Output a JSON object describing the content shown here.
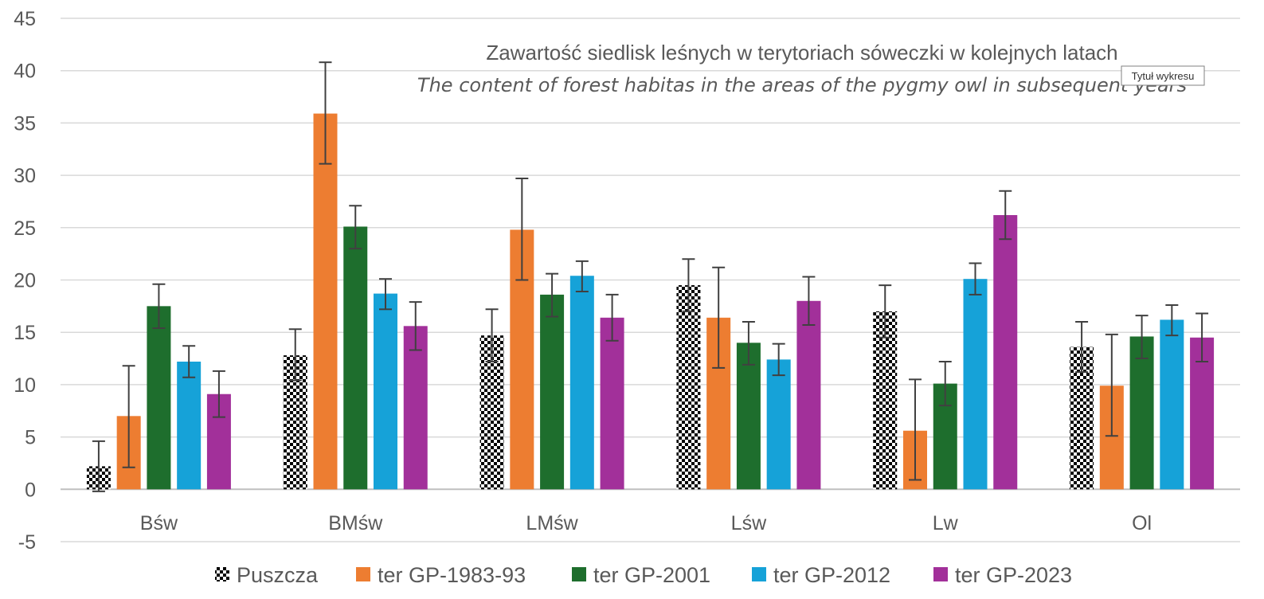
{
  "chart_data": {
    "type": "bar",
    "title": "Zawartość siedlisk leśnych w terytoriach sóweczki w kolejnych latach",
    "subtitle": "The content of forest habitas in the areas of the pygmy owl in subsequent years",
    "categories": [
      "Bśw",
      "BMśw",
      "LMśw",
      "Lśw",
      "Lw",
      "Ol"
    ],
    "ylim": [
      -5,
      45
    ],
    "yticks": [
      -5,
      0,
      5,
      10,
      15,
      20,
      25,
      30,
      35,
      40,
      45
    ],
    "grid": true,
    "legend_position": "bottom",
    "series": [
      {
        "name": "Puszcza",
        "pattern": "checker",
        "color": "#000000",
        "values": [
          2.2,
          12.8,
          14.7,
          19.5,
          17.0,
          13.6
        ],
        "err_low": [
          -0.2,
          10.4,
          12.2,
          17.0,
          14.5,
          11.2
        ],
        "err_high": [
          4.6,
          15.3,
          17.2,
          22.0,
          19.5,
          16.0
        ]
      },
      {
        "name": "ter GP-1983-93",
        "color": "#ED7D31",
        "values": [
          7.0,
          35.9,
          24.8,
          16.4,
          5.6,
          9.9
        ],
        "err_low": [
          2.1,
          31.1,
          20.0,
          11.6,
          0.9,
          5.1
        ],
        "err_high": [
          11.8,
          40.8,
          29.7,
          21.2,
          10.5,
          14.8
        ]
      },
      {
        "name": "ter GP-2001",
        "color": "#1E6E2D",
        "values": [
          17.5,
          25.1,
          18.6,
          14.0,
          10.1,
          14.6
        ],
        "err_low": [
          15.4,
          23.0,
          16.5,
          11.9,
          8.0,
          12.5
        ],
        "err_high": [
          19.6,
          27.1,
          20.6,
          16.0,
          12.2,
          16.6
        ]
      },
      {
        "name": "ter GP-2012",
        "color": "#16A2D8",
        "values": [
          12.2,
          18.7,
          20.4,
          12.4,
          20.1,
          16.2
        ],
        "err_low": [
          10.7,
          17.2,
          18.9,
          10.9,
          18.6,
          14.7
        ],
        "err_high": [
          13.7,
          20.1,
          21.8,
          13.9,
          21.6,
          17.6
        ]
      },
      {
        "name": "ter GP-2023",
        "color": "#A2309A",
        "values": [
          9.1,
          15.6,
          16.4,
          18.0,
          26.2,
          14.5
        ],
        "err_low": [
          6.9,
          13.3,
          14.2,
          15.7,
          23.9,
          12.2
        ],
        "err_high": [
          11.3,
          17.9,
          18.6,
          20.3,
          28.5,
          16.8
        ]
      }
    ]
  },
  "tooltip": {
    "text": "Tytuł wykresu"
  }
}
